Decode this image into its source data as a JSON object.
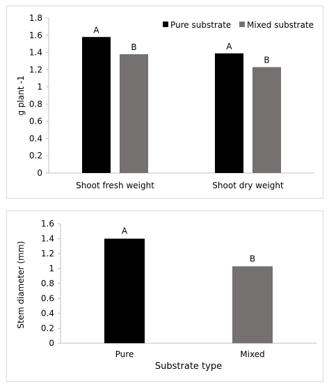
{
  "colors": {
    "pure": "#000000",
    "mixed": "#767171",
    "axis": "#bfbfbf",
    "text": "#000000"
  },
  "chart_data": [
    {
      "type": "bar",
      "categories": [
        "Shoot fresh weight",
        "Shoot dry weight"
      ],
      "series": [
        {
          "name": "Pure substrate",
          "values": [
            1.58,
            1.39
          ],
          "labels": [
            "A",
            "A"
          ]
        },
        {
          "name": "Mixed substrate",
          "values": [
            1.38,
            1.23
          ],
          "labels": [
            "B",
            "B"
          ]
        }
      ],
      "title": "",
      "xlabel": "",
      "ylabel": "g plant -1",
      "ylim": [
        0,
        1.8
      ],
      "yticks": [
        "0",
        "0.2",
        "0.4",
        "0.6",
        "0.8",
        "1",
        "1.2",
        "1.4",
        "1.6",
        "1.8"
      ],
      "legend": "top-right",
      "grid": false
    },
    {
      "type": "bar",
      "categories": [
        "Pure",
        "Mixed"
      ],
      "series": [
        {
          "values": [
            1.4,
            1.03
          ],
          "labels": [
            "A",
            "B"
          ]
        }
      ],
      "title": "",
      "xlabel": "Substrate type",
      "ylabel": "Stem diameter (mm)",
      "ylim": [
        0,
        1.6
      ],
      "yticks": [
        "0",
        "0.2",
        "0.4",
        "0.6",
        "0.8",
        "1",
        "1.2",
        "1.4",
        "1.6"
      ],
      "legend": "none",
      "grid": false
    }
  ]
}
